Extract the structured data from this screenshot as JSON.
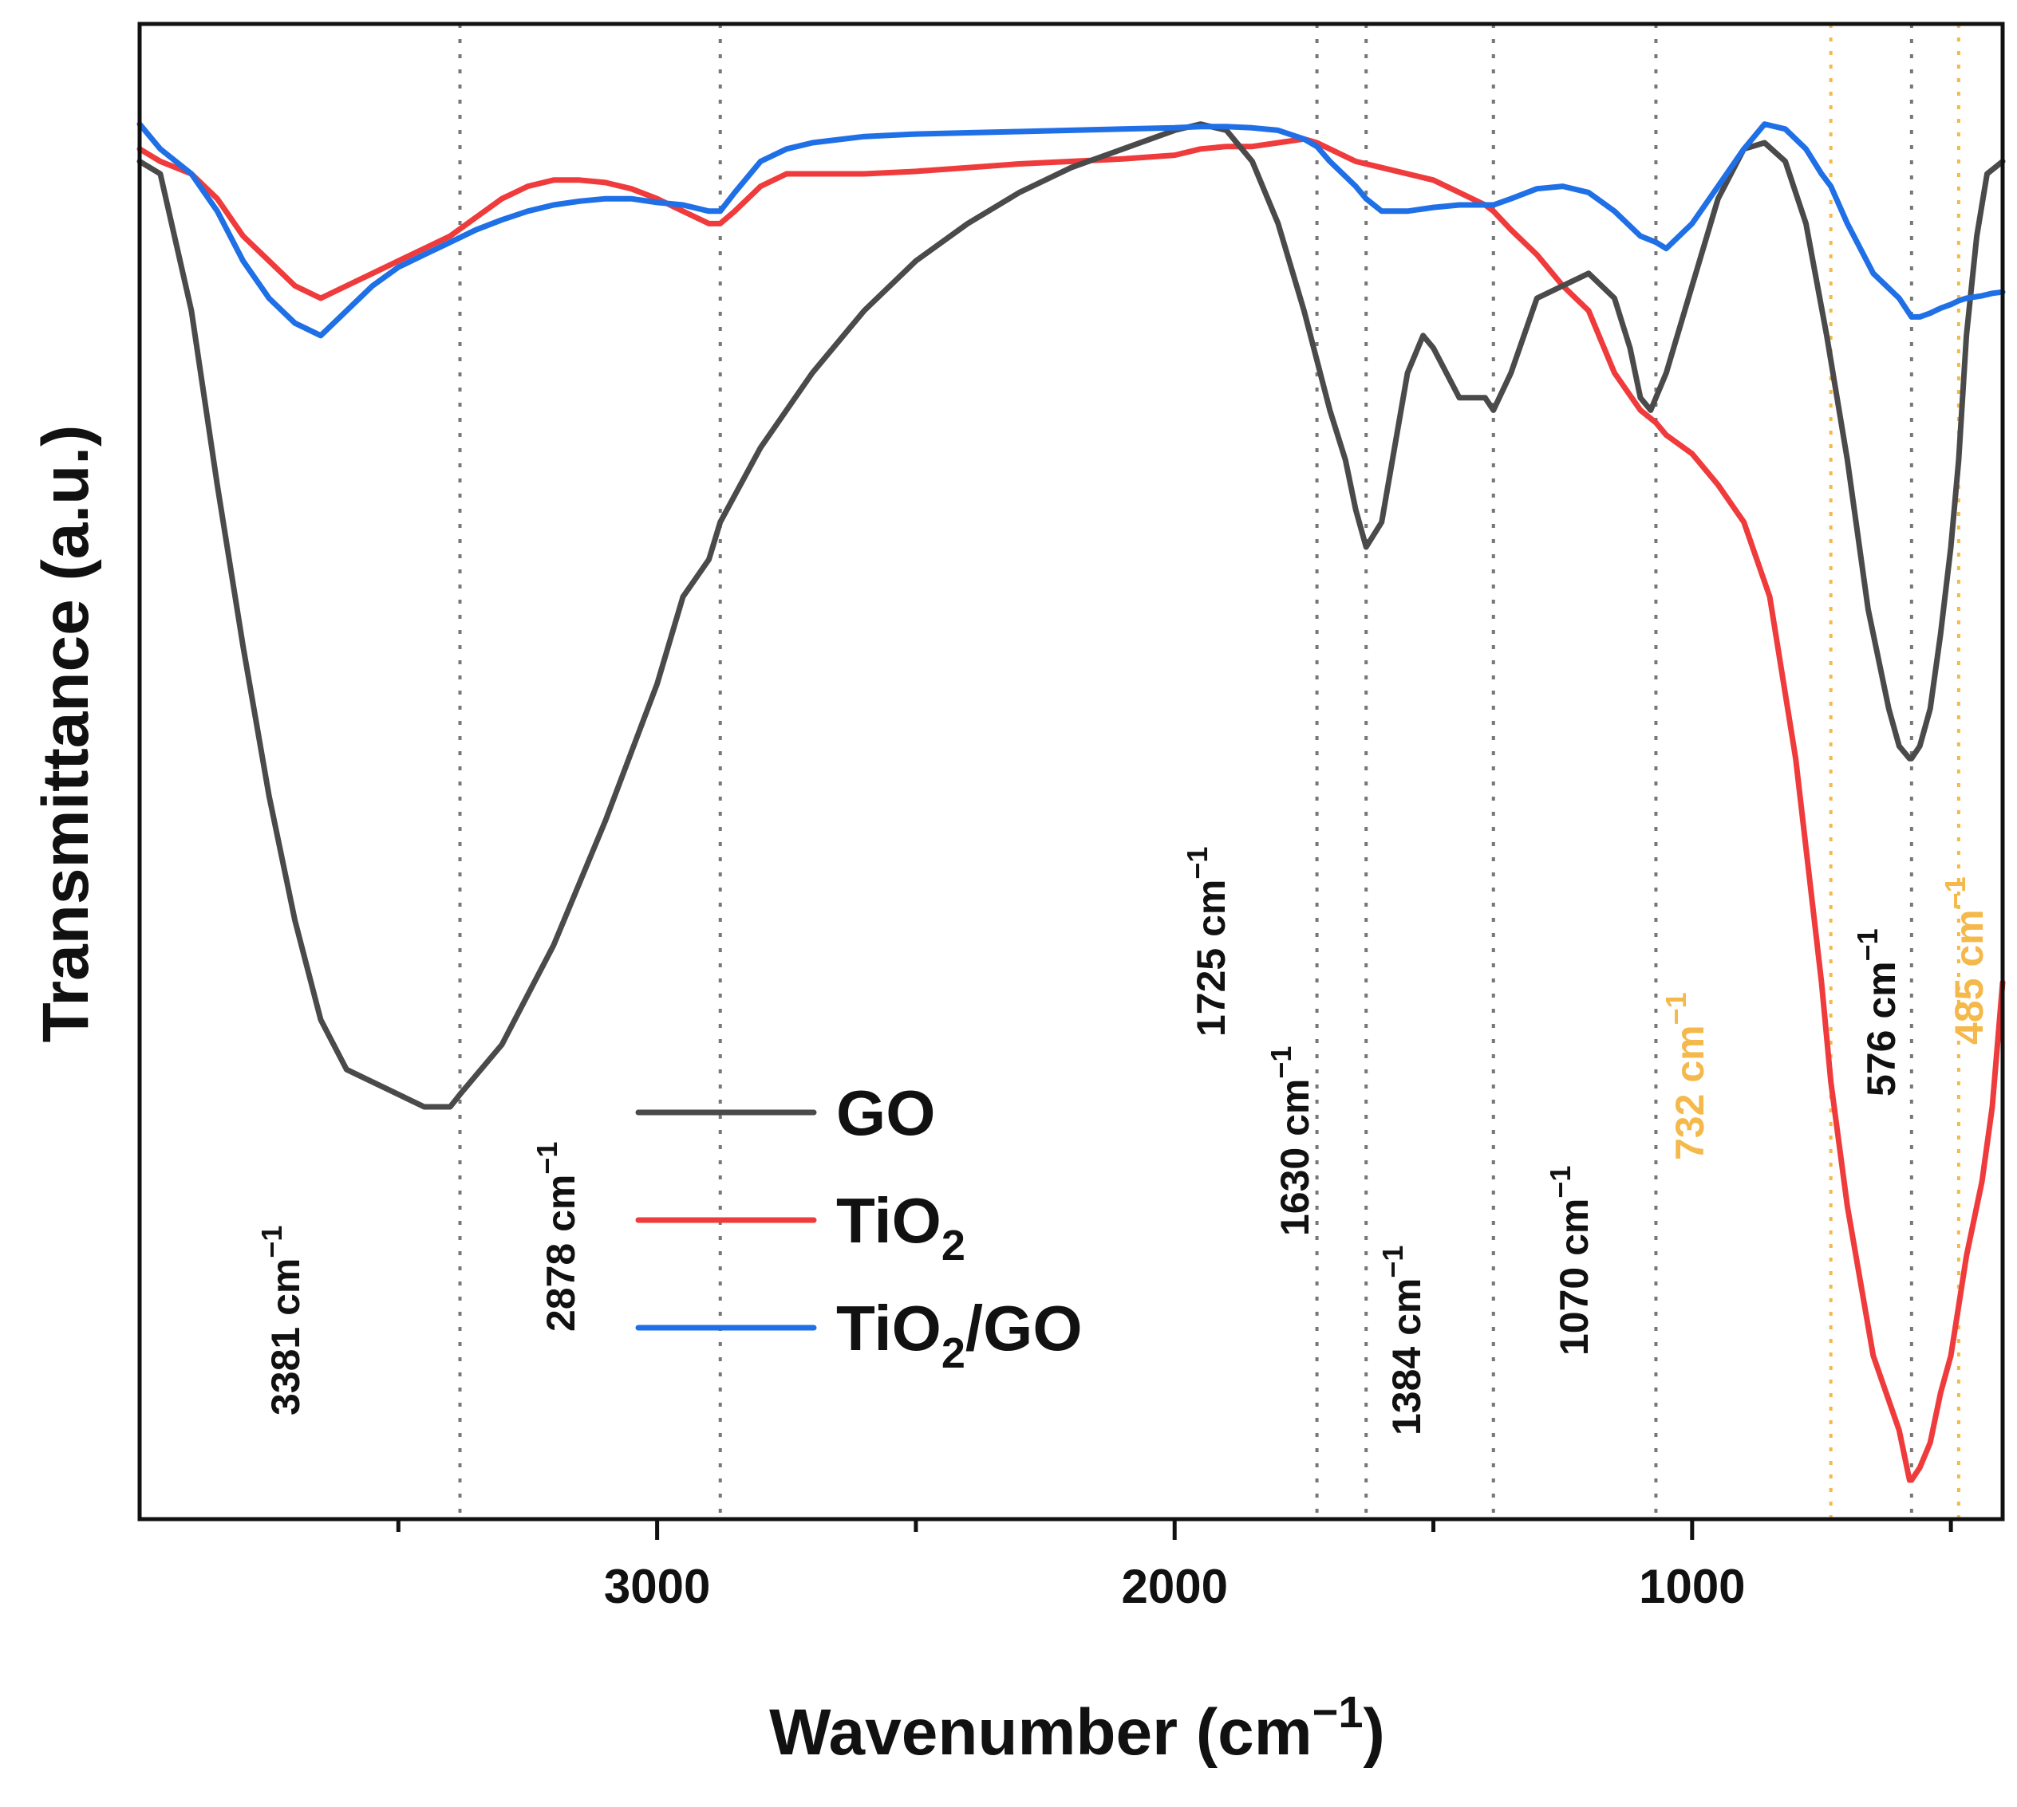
{
  "chart_data": {
    "type": "line",
    "title": "",
    "xlabel": "Wavenumber (cm",
    "xlabel_sup": "−1",
    "xlabel_close": ")",
    "ylabel": "Transmittance (a.u.)",
    "xlim": [
      4000,
      400
    ],
    "x_ticks": [
      3000,
      2000,
      1000
    ],
    "x_tick_labels": [
      "3000",
      "2000",
      "1000"
    ],
    "y_ticks_shown": false,
    "grid": false,
    "legend_position": "center-left",
    "legend": [
      {
        "series": "GO",
        "label": "GO",
        "sub": "",
        "suffix": ""
      },
      {
        "series": "TiO2",
        "label": "TiO",
        "sub": "2",
        "suffix": ""
      },
      {
        "series": "TiO2/GO",
        "label": "TiO",
        "sub": "2",
        "suffix": "/GO"
      }
    ],
    "series": [
      {
        "name": "GO",
        "color": "#4a4a4a",
        "x": [
          4000,
          3960,
          3900,
          3850,
          3800,
          3750,
          3700,
          3650,
          3600,
          3550,
          3500,
          3450,
          3400,
          3381,
          3300,
          3200,
          3100,
          3000,
          2950,
          2900,
          2878,
          2800,
          2700,
          2600,
          2500,
          2400,
          2300,
          2200,
          2100,
          2000,
          1950,
          1900,
          1850,
          1800,
          1750,
          1725,
          1700,
          1670,
          1650,
          1630,
          1600,
          1550,
          1520,
          1500,
          1450,
          1400,
          1384,
          1350,
          1300,
          1250,
          1200,
          1150,
          1120,
          1100,
          1080,
          1070,
          1050,
          1000,
          950,
          900,
          860,
          820,
          780,
          740,
          700,
          660,
          620,
          600,
          580,
          576,
          560,
          540,
          520,
          500,
          485,
          470,
          450,
          430,
          400
        ],
        "y": [
          96,
          95,
          84,
          70,
          57,
          45,
          35,
          27,
          23,
          22,
          21,
          20,
          20,
          21,
          25,
          33,
          43,
          54,
          61,
          64,
          67,
          73,
          79,
          84,
          88,
          91,
          93.5,
          95.5,
          97,
          98.5,
          99,
          98.5,
          96,
          91,
          84,
          80,
          76,
          72,
          68,
          65,
          67,
          79,
          82,
          81,
          77,
          77,
          76,
          79,
          85,
          86,
          87,
          85,
          81,
          77,
          76,
          77,
          79,
          86,
          93,
          97,
          97.5,
          96,
          91,
          82,
          72,
          60,
          52,
          49,
          48,
          48,
          49,
          52,
          58,
          65,
          72,
          82,
          90,
          95,
          96
        ]
      },
      {
        "name": "TiO2",
        "color": "#ef3b3b",
        "x": [
          4000,
          3960,
          3900,
          3850,
          3800,
          3750,
          3700,
          3650,
          3600,
          3550,
          3500,
          3450,
          3400,
          3350,
          3300,
          3250,
          3200,
          3150,
          3100,
          3050,
          3000,
          2950,
          2900,
          2878,
          2850,
          2800,
          2750,
          2700,
          2600,
          2500,
          2400,
          2300,
          2200,
          2100,
          2000,
          1950,
          1900,
          1850,
          1800,
          1750,
          1725,
          1700,
          1650,
          1600,
          1550,
          1500,
          1450,
          1400,
          1384,
          1350,
          1300,
          1250,
          1200,
          1150,
          1100,
          1070,
          1050,
          1000,
          950,
          900,
          850,
          800,
          750,
          732,
          700,
          650,
          600,
          580,
          576,
          560,
          540,
          520,
          500,
          485,
          470,
          440,
          420,
          400
        ],
        "y": [
          97,
          96,
          95,
          93,
          90,
          88,
          86,
          85,
          86,
          87,
          88,
          89,
          90,
          91.5,
          93,
          94,
          94.5,
          94.5,
          94.3,
          93.8,
          93,
          92,
          91,
          91,
          92,
          94,
          95,
          95,
          95,
          95.2,
          95.5,
          95.8,
          96,
          96.2,
          96.5,
          97,
          97.2,
          97.2,
          97.5,
          97.8,
          97.5,
          97,
          96,
          95.5,
          95,
          94.5,
          93.5,
          92.5,
          92,
          90.5,
          88.5,
          86,
          84,
          79,
          76,
          75,
          74,
          72.5,
          70,
          67,
          61,
          48,
          30,
          22,
          12,
          0,
          -6,
          -10,
          -10,
          -9,
          -7,
          -3,
          0,
          4,
          8,
          14,
          20,
          30
        ]
      },
      {
        "name": "TiO2/GO",
        "color": "#1f6fe6",
        "x": [
          4000,
          3960,
          3900,
          3850,
          3800,
          3750,
          3700,
          3650,
          3600,
          3550,
          3500,
          3450,
          3400,
          3350,
          3300,
          3250,
          3200,
          3150,
          3100,
          3050,
          3000,
          2950,
          2900,
          2878,
          2850,
          2800,
          2750,
          2700,
          2600,
          2500,
          2400,
          2300,
          2200,
          2100,
          2000,
          1950,
          1900,
          1850,
          1800,
          1750,
          1725,
          1700,
          1650,
          1630,
          1600,
          1550,
          1500,
          1450,
          1400,
          1384,
          1350,
          1300,
          1250,
          1200,
          1150,
          1100,
          1070,
          1050,
          1000,
          950,
          900,
          860,
          820,
          780,
          750,
          732,
          700,
          650,
          600,
          576,
          560,
          540,
          520,
          500,
          485,
          470,
          440,
          420,
          400
        ],
        "y": [
          99,
          97,
          95,
          92,
          88,
          85,
          83,
          82,
          84,
          86,
          87.5,
          88.5,
          89.5,
          90.5,
          91.3,
          92,
          92.5,
          92.8,
          93,
          93,
          92.7,
          92.5,
          92,
          92,
          93.5,
          96,
          97,
          97.5,
          98,
          98.2,
          98.3,
          98.4,
          98.5,
          98.6,
          98.7,
          98.8,
          98.8,
          98.7,
          98.5,
          97.8,
          97.2,
          96,
          94,
          93,
          92,
          92,
          92.3,
          92.5,
          92.5,
          92.5,
          93,
          93.8,
          94,
          93.5,
          92,
          90,
          89.5,
          89,
          91,
          94,
          97,
          99,
          98.6,
          97,
          95,
          94,
          91,
          87,
          85,
          83.5,
          83.5,
          83.8,
          84.2,
          84.5,
          84.8,
          85,
          85.2,
          85.4,
          85.5
        ]
      }
    ],
    "annotations": [
      {
        "x": 3381,
        "label": "3381 cm",
        "sup": "−1",
        "color": "#111111"
      },
      {
        "x": 2878,
        "label": "2878 cm",
        "sup": "−1",
        "color": "#111111"
      },
      {
        "x": 1725,
        "label": "1725 cm",
        "sup": "−1",
        "color": "#111111"
      },
      {
        "x": 1630,
        "label": "1630 cm",
        "sup": "−1",
        "color": "#111111"
      },
      {
        "x": 1384,
        "label": "1384 cm",
        "sup": "−1",
        "color": "#111111"
      },
      {
        "x": 1070,
        "label": "1070 cm",
        "sup": "−1",
        "color": "#111111"
      },
      {
        "x": 732,
        "label": "732 cm",
        "sup": "−1",
        "color": "#f5b84a"
      },
      {
        "x": 576,
        "label": "576 cm",
        "sup": "−1",
        "color": "#111111"
      },
      {
        "x": 485,
        "label": "485 cm",
        "sup": "−1",
        "color": "#f5b84a"
      }
    ]
  }
}
